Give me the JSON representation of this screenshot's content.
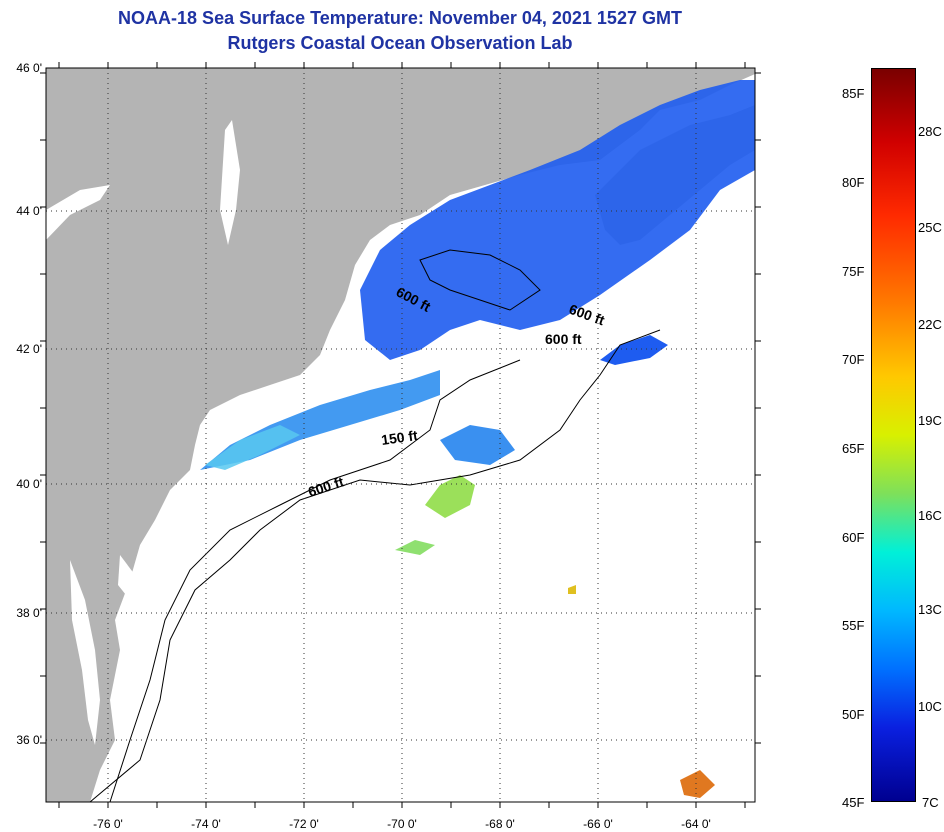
{
  "header": {
    "title": "NOAA-18 Sea Surface Temperature:  November 04, 2021 1527 GMT",
    "subtitle": "Rutgers Coastal Ocean Observation Lab"
  },
  "map": {
    "lat_labels": [
      "46 0'",
      "44 0'",
      "42 0'",
      "40 0'",
      "38 0'",
      "36 0'"
    ],
    "lon_labels": [
      "-76 0'",
      "-74 0'",
      "-72 0'",
      "-70 0'",
      "-68 0'",
      "-66 0'",
      "-64 0'"
    ],
    "contour_labels": [
      "600 ft",
      "600 ft",
      "600 ft",
      "150 ft",
      "600 ft"
    ],
    "colors": {
      "land": "#b4b4b4",
      "ocean_no_data": "#ffffff",
      "cold_water": "#1e5cf0",
      "warm_water": "#9be05a"
    }
  },
  "colorbar": {
    "fahrenheit_labels": [
      "85F",
      "80F",
      "75F",
      "70F",
      "65F",
      "60F",
      "55F",
      "50F",
      "45F"
    ],
    "celsius_labels": [
      "28C",
      "25C",
      "22C",
      "19C",
      "16C",
      "13C",
      "10C",
      "7C"
    ]
  }
}
